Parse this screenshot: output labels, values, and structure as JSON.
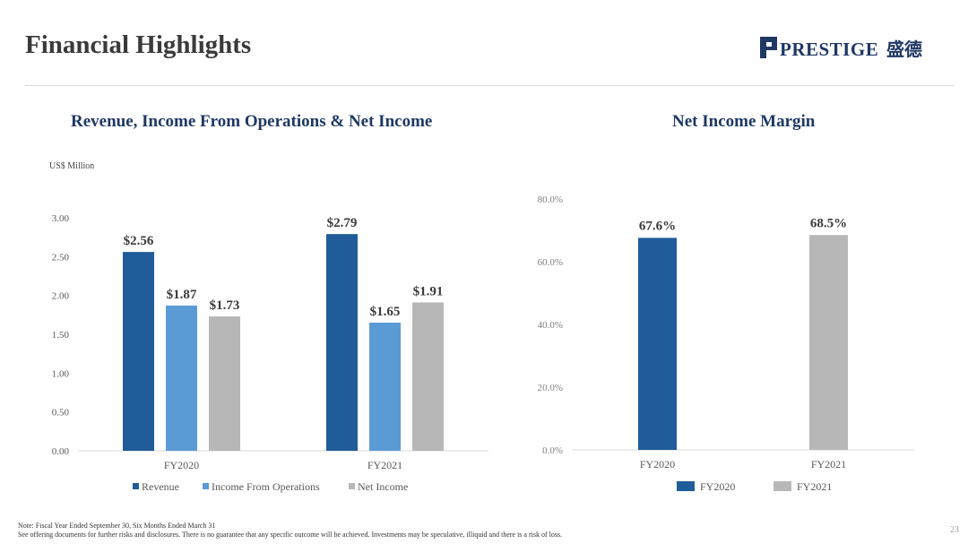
{
  "header": {
    "title": "Financial Highlights",
    "logo_text": "PRESTIGE",
    "logo_chinese": "盛德"
  },
  "left_chart": {
    "units_label": "US$ Million"
  },
  "chart_data": [
    {
      "type": "bar",
      "title": "Revenue, Income From Operations & Net Income",
      "categories": [
        "FY2020",
        "FY2021"
      ],
      "series": [
        {
          "name": "Revenue",
          "values": [
            2.56,
            2.79
          ],
          "labels": [
            "$2.56",
            "$2.79"
          ],
          "color": "#1f5c99"
        },
        {
          "name": "Income From Operations",
          "values": [
            1.87,
            1.65
          ],
          "labels": [
            "$1.87",
            "$1.65"
          ],
          "color": "#5b9bd5"
        },
        {
          "name": "Net Income",
          "values": [
            1.73,
            1.91
          ],
          "labels": [
            "$1.73",
            "$1.91"
          ],
          "color": "#b7b7b7"
        }
      ],
      "ylim": [
        0,
        3.0
      ],
      "yticks": [
        0,
        0.5,
        1.0,
        1.5,
        2.0,
        2.5,
        3.0
      ],
      "ytick_labels": [
        "0.00",
        "0.50",
        "1.00",
        "1.50",
        "2.00",
        "2.50",
        "3.00"
      ],
      "ylabel": "US$ Million",
      "legend": "bottom"
    },
    {
      "type": "bar",
      "title": "Net Income Margin",
      "categories": [
        "FY2020",
        "FY2021"
      ],
      "values": [
        67.6,
        68.5
      ],
      "labels": [
        "67.6%",
        "68.5%"
      ],
      "colors": [
        "#1f5c99",
        "#b7b7b7"
      ],
      "ylim": [
        0,
        80
      ],
      "yticks": [
        0,
        20,
        40,
        60,
        80
      ],
      "ytick_labels": [
        "0.0%",
        "20.0%",
        "40.0%",
        "60.0%",
        "80.0%"
      ],
      "legend": "bottom"
    }
  ],
  "footer": {
    "note_line1": "Note: Fiscal Year Ended September 30, Six Months Ended March 31",
    "note_line2": "See offering documents for further risks and disclosures. There is no guarantee that any specific outcome will be achieved. Investments may be speculative, illiquid and there is a risk of loss.",
    "page_number": "23"
  },
  "colors": {
    "title_navy": "#1f3864",
    "dark_blue": "#1f5c99",
    "light_blue": "#5b9bd5",
    "gray": "#b7b7b7"
  }
}
